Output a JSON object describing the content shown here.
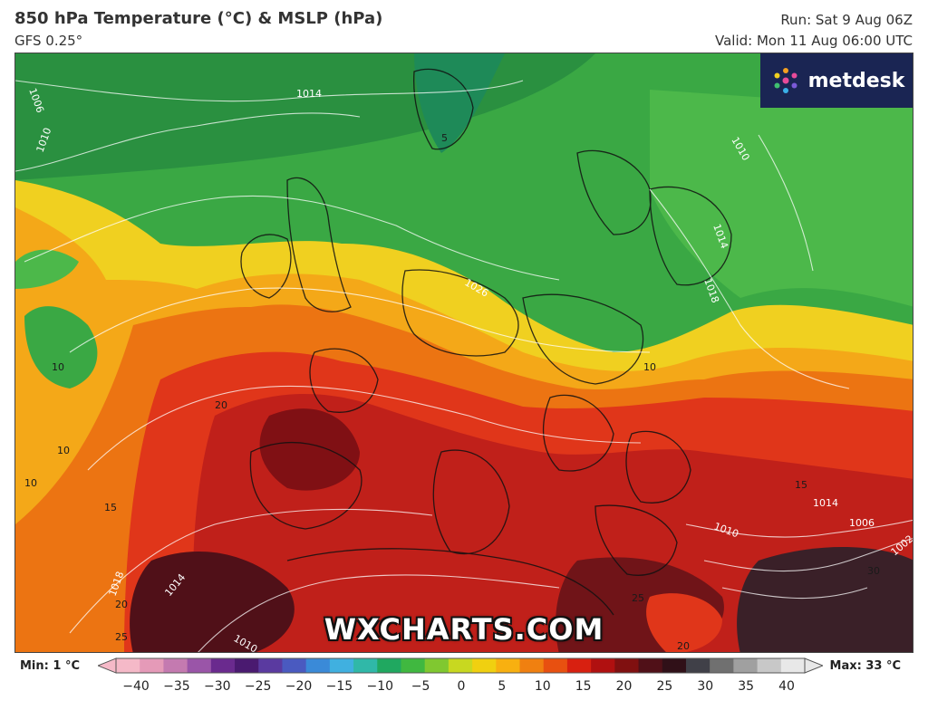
{
  "header": {
    "title": "850 hPa Temperature (°C) & MSLP (hPa)",
    "model": "GFS 0.25°",
    "run": "Run: Sat 9 Aug 06Z",
    "valid": "Valid: Mon 11 Aug 06:00 UTC"
  },
  "brand": {
    "name": "metdesk",
    "accent": "#1a2553"
  },
  "watermark": "WXCHARTS.COM",
  "footer": {
    "min": "Min: 1 °C",
    "max": "Max: 33 °C"
  },
  "colorbar": {
    "ticks": [
      "−40",
      "−35",
      "−30",
      "−25",
      "−20",
      "−15",
      "−10",
      "−5",
      "0",
      "5",
      "10",
      "15",
      "20",
      "25",
      "30",
      "35",
      "40"
    ],
    "colors": [
      "#f5b9c8",
      "#e59ab8",
      "#c47ab0",
      "#9a55a8",
      "#6a2a8e",
      "#4a1a70",
      "#5a3aa0",
      "#4a5ac0",
      "#3a8ad8",
      "#40b0e0",
      "#30b8a8",
      "#20a860",
      "#40b840",
      "#80c830",
      "#c8d820",
      "#f0d010",
      "#f8b010",
      "#f08010",
      "#e85010",
      "#d82010",
      "#b01010",
      "#801010",
      "#501018",
      "#301018",
      "#404048",
      "#707070",
      "#a0a0a0",
      "#c8c8c8",
      "#e8e8e8"
    ]
  },
  "map": {
    "isobar_labels": [
      "1014",
      "1006",
      "1010",
      "1010",
      "1014",
      "1018",
      "1014",
      "1026",
      "1018",
      "1014",
      "1010",
      "1006",
      "1002",
      "1010"
    ],
    "temp_labels": [
      "10",
      "10",
      "10",
      "20",
      "15",
      "20",
      "25",
      "10",
      "15",
      "25",
      "20",
      "30",
      "5"
    ]
  }
}
